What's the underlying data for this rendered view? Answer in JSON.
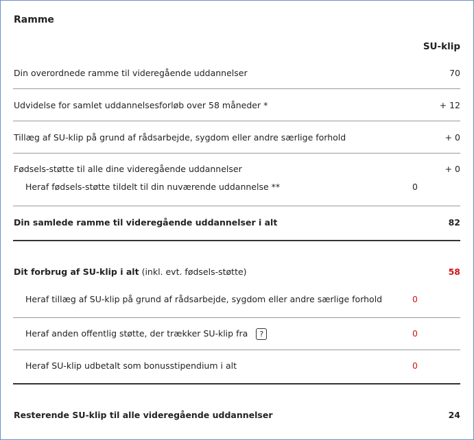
{
  "title": "Ramme",
  "column_header": "SU-klip",
  "ramme_rows": [
    {
      "label": "Din overordnede ramme til videregående uddannelser",
      "value": 70
    },
    {
      "label": "Udvidelse for samlet uddannelsesforløb over 58 måneder *",
      "value": "+ 12"
    },
    {
      "label": "Tillæg af SU-klip på grund af rådsarbejde, sygdom eller andre særlige forhold",
      "value": "+ 0"
    },
    {
      "label": "Fødsels-støtte til alle dine videregående uddannelser",
      "value": "+ 0",
      "sub_label": "Heraf fødsels-støtte tildelt til din nuværende uddannelse **",
      "sub_value": 0
    }
  ],
  "ramme_total": {
    "label": "Din samlede ramme til videregående uddannelser i alt",
    "value": 82
  },
  "forbrug": {
    "label": "Dit forbrug af SU-klip i alt",
    "note": "(inkl. evt. fødsels-støtte)",
    "value": 58
  },
  "forbrug_rows": [
    {
      "label": "Heraf tillæg af SU-klip på grund af rådsarbejde, sygdom eller andre særlige forhold",
      "value": 0
    },
    {
      "label": "Heraf anden offentlig støtte, der trækker SU-klip fra",
      "value": 0,
      "help": "?"
    },
    {
      "label": "Heraf SU-klip udbetalt som bonusstipendium i alt",
      "value": 0
    }
  ],
  "resterende": {
    "label": "Resterende SU-klip til alle videregående uddannelser",
    "value": 24
  }
}
